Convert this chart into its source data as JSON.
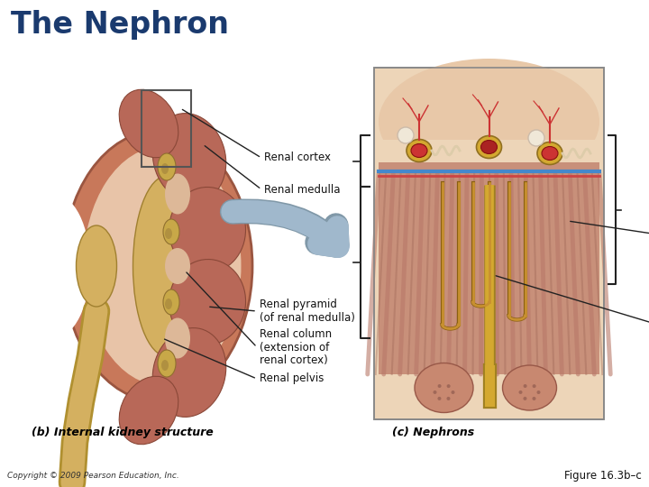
{
  "title": "The Nephron",
  "title_color": "#1a3a6e",
  "title_fontsize": 24,
  "title_weight": "bold",
  "copyright_text": "Copyright © 2009 Pearson Education, Inc.",
  "figure_label": "Figure 16.3b–c",
  "label_b": "(b) Internal kidney structure",
  "label_c": "(c) Nephrons",
  "background_color": "#ffffff",
  "kidney_outer_color": "#C8785A",
  "kidney_cortex_color": "#D4907A",
  "kidney_inner_color": "#E8C4A8",
  "kidney_pyramid_color": "#B86858",
  "kidney_pelvis_color": "#D4B060",
  "kidney_column_color": "#DDB898",
  "nephron_panel_bg": "#EDD5B8",
  "nephron_cortex_color": "#E8C8A8",
  "nephron_medulla_color": "#C8907A",
  "nephron_stripe_color": "#B87868",
  "nephron_duct_color": "#D4A830",
  "nephron_loop_color": "#C89030",
  "blue_line_color": "#4488CC",
  "red_vessel_color": "#CC3333",
  "arrow_color": "#A0B8CC",
  "bracket_color": "#222222",
  "annot_fontsize": 8.5,
  "annot_color": "#111111"
}
